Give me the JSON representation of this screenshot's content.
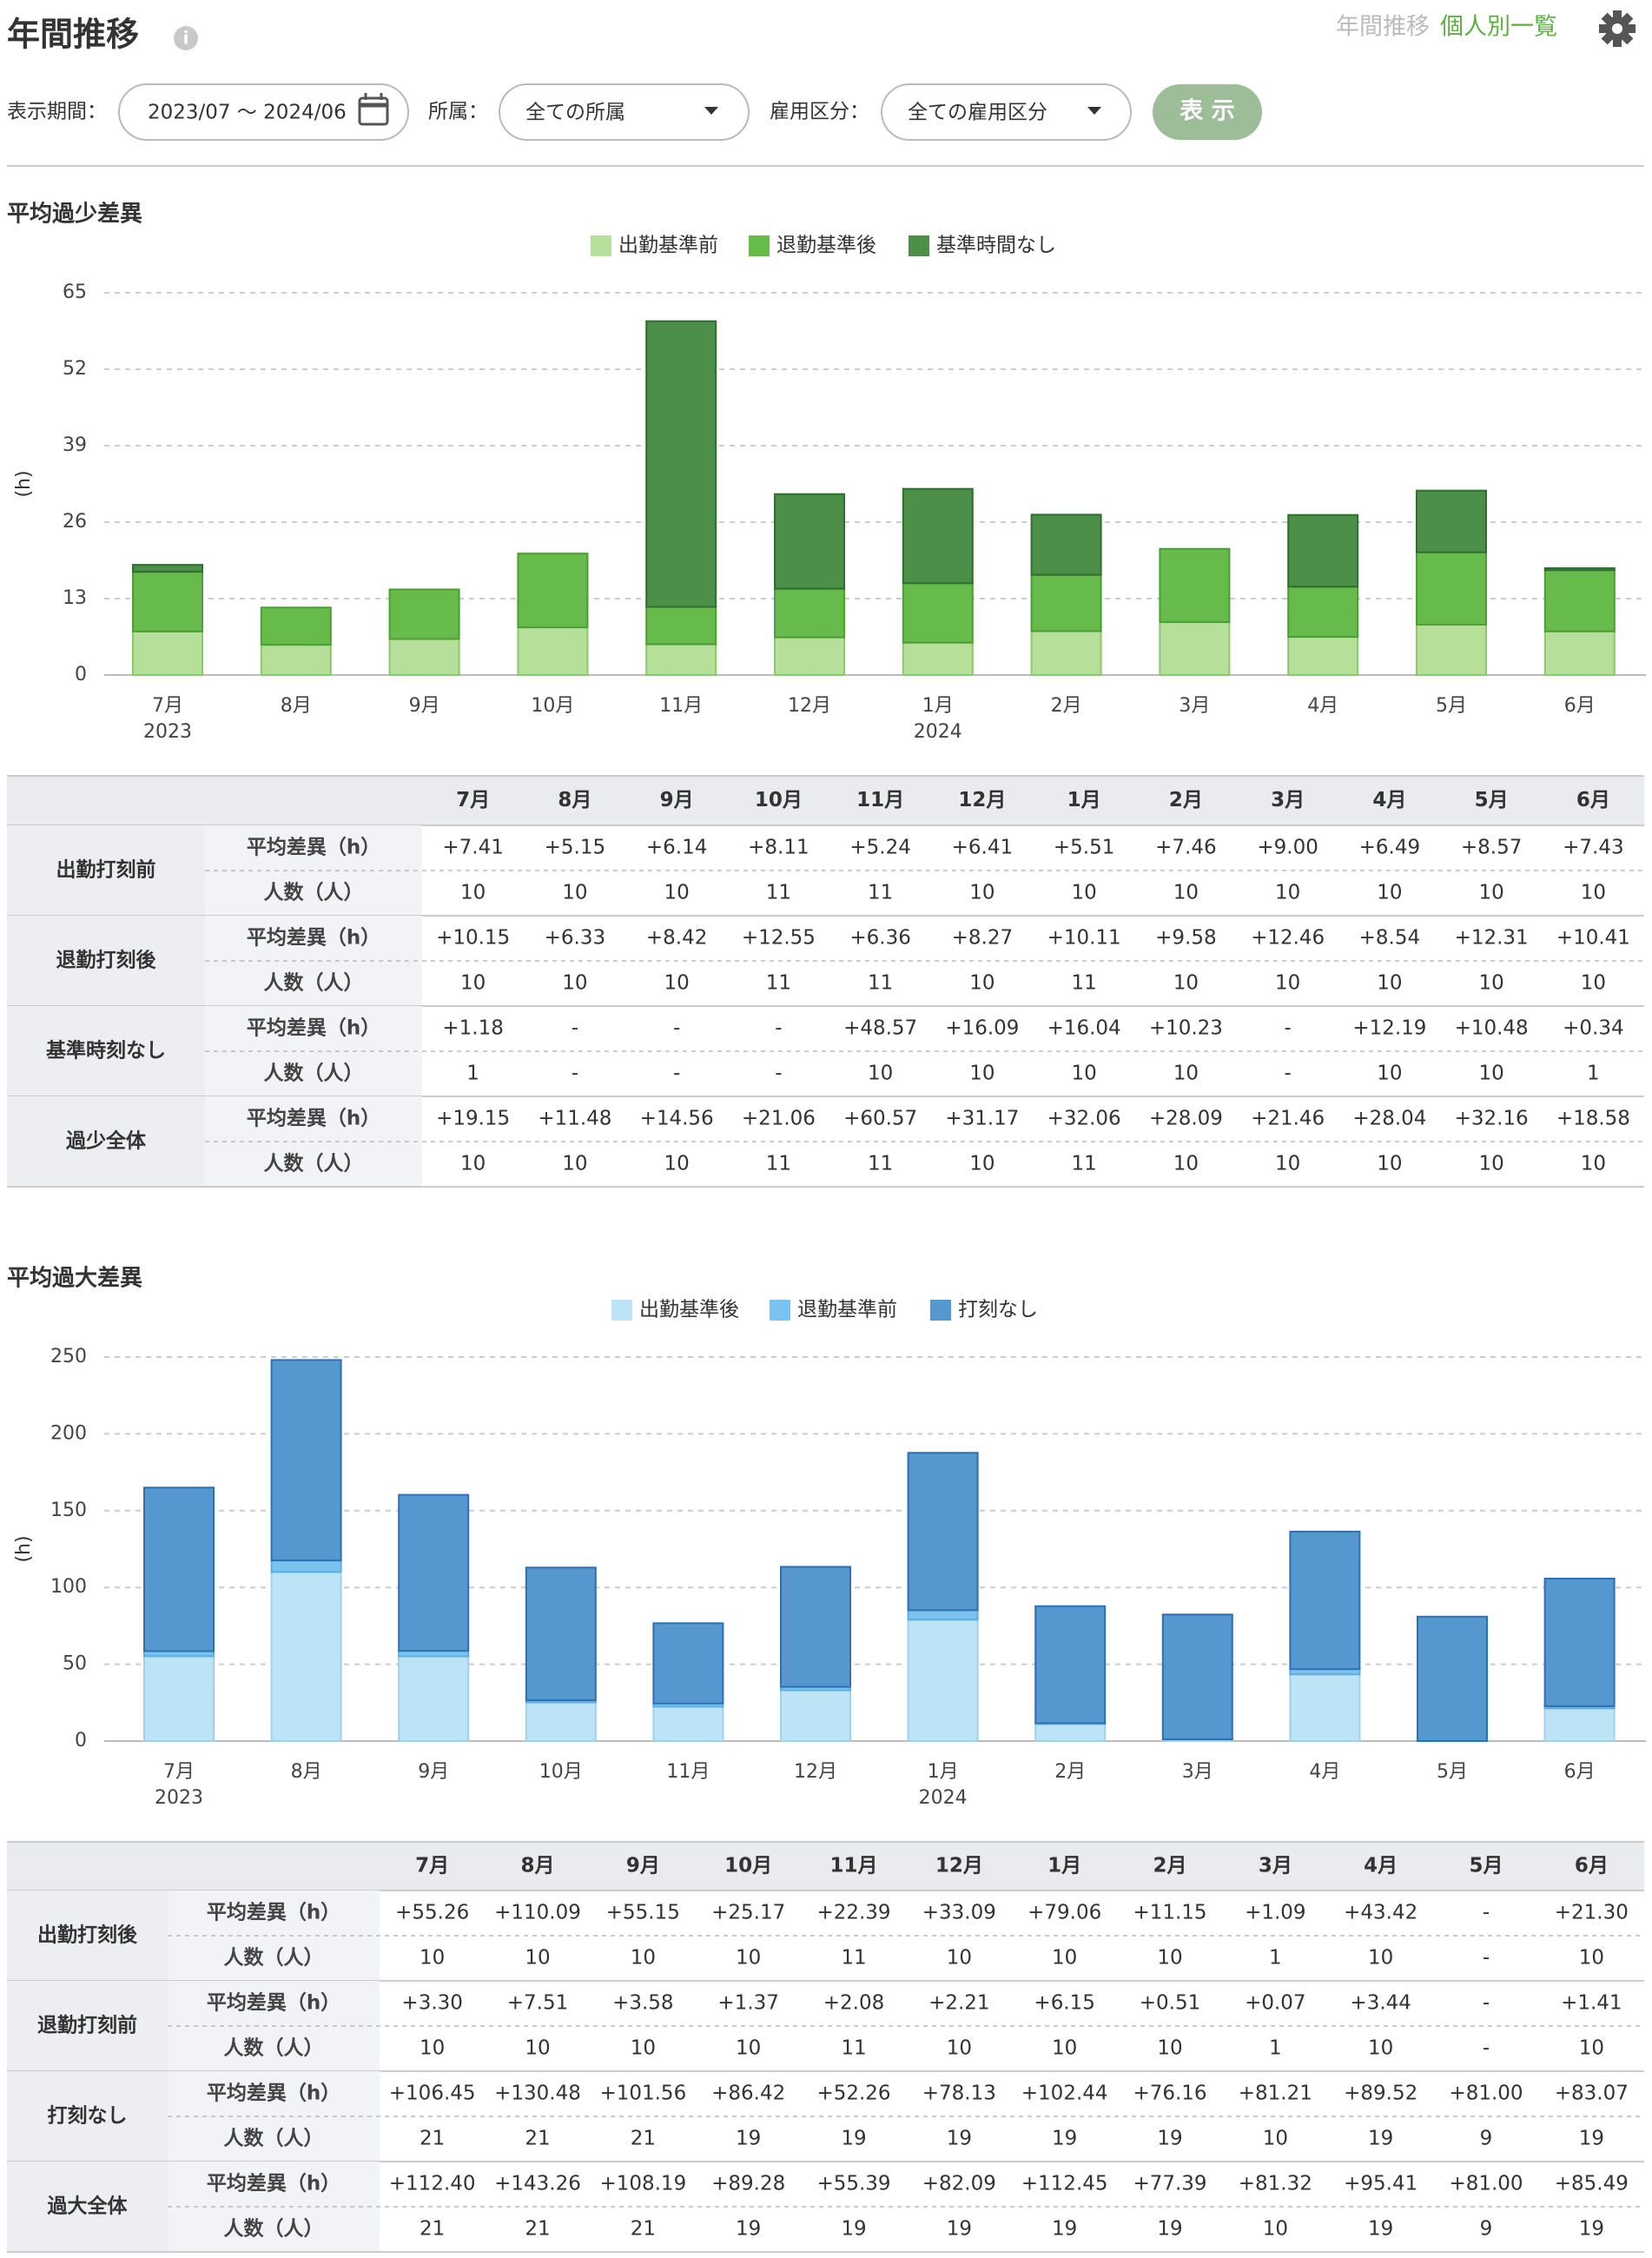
{
  "header": {
    "title": "年間推移",
    "nav": [
      "年間推移",
      "個人別一覧"
    ]
  },
  "filters": {
    "period_label": "表示期間：",
    "period_value": "2023/07 〜 2024/06",
    "dept_label": "所属：",
    "dept_value": "全ての所属",
    "emp_label": "雇用区分：",
    "emp_value": "全ての雇用区分",
    "button": "表 示"
  },
  "chart_data": [
    {
      "type": "bar",
      "stacked": true,
      "title": "平均過少差異",
      "y_label": "(h)",
      "grid": true,
      "legend": "top",
      "categories": [
        "7月",
        "8月",
        "9月",
        "10月",
        "11月",
        "12月",
        "1月",
        "2月",
        "3月",
        "4月",
        "5月",
        "6月"
      ],
      "year_labels": [
        "2023",
        null,
        null,
        null,
        null,
        null,
        "2024",
        null,
        null,
        null,
        null,
        null
      ],
      "ylim": [
        0,
        65
      ],
      "yticks": [
        0,
        13,
        26,
        39,
        52,
        65
      ],
      "series": [
        {
          "name": "出勤基準前",
          "color": "#b6df99",
          "border": "#8cc86c",
          "values": [
            7.41,
            5.15,
            6.14,
            8.11,
            5.24,
            6.41,
            5.51,
            7.46,
            9.0,
            6.49,
            8.57,
            7.43
          ]
        },
        {
          "name": "退勤基準後",
          "color": "#66bb4a",
          "border": "#4b9d35",
          "values": [
            10.15,
            6.33,
            8.42,
            12.55,
            6.36,
            8.27,
            10.11,
            9.58,
            12.46,
            8.54,
            12.31,
            10.41
          ]
        },
        {
          "name": "基準時間なし",
          "color": "#4b8f49",
          "border": "#2f6e2e",
          "values": [
            1.18,
            null,
            null,
            null,
            48.57,
            16.09,
            16.04,
            10.23,
            null,
            12.19,
            10.48,
            0.34
          ]
        }
      ]
    },
    {
      "type": "bar",
      "stacked": true,
      "title": "平均過大差異",
      "y_label": "(h)",
      "grid": true,
      "legend": "top",
      "categories": [
        "7月",
        "8月",
        "9月",
        "10月",
        "11月",
        "12月",
        "1月",
        "2月",
        "3月",
        "4月",
        "5月",
        "6月"
      ],
      "year_labels": [
        "2023",
        null,
        null,
        null,
        null,
        null,
        "2024",
        null,
        null,
        null,
        null,
        null
      ],
      "ylim": [
        0,
        250
      ],
      "yticks": [
        0,
        50,
        100,
        150,
        200,
        250
      ],
      "series": [
        {
          "name": "出勤基準後",
          "color": "#bde3f7",
          "border": "#9fd0ee",
          "values": [
            55.26,
            110.09,
            55.15,
            25.17,
            22.39,
            33.09,
            79.06,
            11.15,
            1.09,
            43.42,
            null,
            21.3
          ]
        },
        {
          "name": "退勤基準前",
          "color": "#79c3ee",
          "border": "#5aaee0",
          "values": [
            3.3,
            7.51,
            3.58,
            1.37,
            2.08,
            2.21,
            6.15,
            0.51,
            0.07,
            3.44,
            null,
            1.41
          ]
        },
        {
          "name": "打刻なし",
          "color": "#5597cf",
          "border": "#2f6fb3",
          "values": [
            106.45,
            130.48,
            101.56,
            86.42,
            52.26,
            78.13,
            102.44,
            76.16,
            81.21,
            89.52,
            81.0,
            83.07
          ]
        }
      ]
    }
  ],
  "tables": [
    {
      "months": [
        "7月",
        "8月",
        "9月",
        "10月",
        "11月",
        "12月",
        "1月",
        "2月",
        "3月",
        "4月",
        "5月",
        "6月"
      ],
      "groups": [
        {
          "label": "出勤打刻前",
          "rows": [
            {
              "label": "平均差異（h）",
              "cells": [
                "+7.41",
                "+5.15",
                "+6.14",
                "+8.11",
                "+5.24",
                "+6.41",
                "+5.51",
                "+7.46",
                "+9.00",
                "+6.49",
                "+8.57",
                "+7.43"
              ]
            },
            {
              "label": "人数（人）",
              "cells": [
                "10",
                "10",
                "10",
                "11",
                "11",
                "10",
                "10",
                "10",
                "10",
                "10",
                "10",
                "10"
              ]
            }
          ]
        },
        {
          "label": "退勤打刻後",
          "rows": [
            {
              "label": "平均差異（h）",
              "cells": [
                "+10.15",
                "+6.33",
                "+8.42",
                "+12.55",
                "+6.36",
                "+8.27",
                "+10.11",
                "+9.58",
                "+12.46",
                "+8.54",
                "+12.31",
                "+10.41"
              ]
            },
            {
              "label": "人数（人）",
              "cells": [
                "10",
                "10",
                "10",
                "11",
                "11",
                "10",
                "11",
                "10",
                "10",
                "10",
                "10",
                "10"
              ]
            }
          ]
        },
        {
          "label": "基準時刻なし",
          "rows": [
            {
              "label": "平均差異（h）",
              "cells": [
                "+1.18",
                "-",
                "-",
                "-",
                "+48.57",
                "+16.09",
                "+16.04",
                "+10.23",
                "-",
                "+12.19",
                "+10.48",
                "+0.34"
              ]
            },
            {
              "label": "人数（人）",
              "cells": [
                "1",
                "-",
                "-",
                "-",
                "10",
                "10",
                "10",
                "10",
                "-",
                "10",
                "10",
                "1"
              ]
            }
          ]
        },
        {
          "label": "過少全体",
          "rows": [
            {
              "label": "平均差異（h）",
              "cells": [
                "+19.15",
                "+11.48",
                "+14.56",
                "+21.06",
                "+60.57",
                "+31.17",
                "+32.06",
                "+28.09",
                "+21.46",
                "+28.04",
                "+32.16",
                "+18.58"
              ]
            },
            {
              "label": "人数（人）",
              "cells": [
                "10",
                "10",
                "10",
                "11",
                "11",
                "10",
                "11",
                "10",
                "10",
                "10",
                "10",
                "10"
              ]
            }
          ]
        }
      ]
    },
    {
      "months": [
        "7月",
        "8月",
        "9月",
        "10月",
        "11月",
        "12月",
        "1月",
        "2月",
        "3月",
        "4月",
        "5月",
        "6月"
      ],
      "groups": [
        {
          "label": "出勤打刻後",
          "rows": [
            {
              "label": "平均差異（h）",
              "cells": [
                "+55.26",
                "+110.09",
                "+55.15",
                "+25.17",
                "+22.39",
                "+33.09",
                "+79.06",
                "+11.15",
                "+1.09",
                "+43.42",
                "-",
                "+21.30"
              ]
            },
            {
              "label": "人数（人）",
              "cells": [
                "10",
                "10",
                "10",
                "10",
                "11",
                "10",
                "10",
                "10",
                "1",
                "10",
                "-",
                "10"
              ]
            }
          ]
        },
        {
          "label": "退勤打刻前",
          "rows": [
            {
              "label": "平均差異（h）",
              "cells": [
                "+3.30",
                "+7.51",
                "+3.58",
                "+1.37",
                "+2.08",
                "+2.21",
                "+6.15",
                "+0.51",
                "+0.07",
                "+3.44",
                "-",
                "+1.41"
              ]
            },
            {
              "label": "人数（人）",
              "cells": [
                "10",
                "10",
                "10",
                "10",
                "11",
                "10",
                "10",
                "10",
                "1",
                "10",
                "-",
                "10"
              ]
            }
          ]
        },
        {
          "label": "打刻なし",
          "rows": [
            {
              "label": "平均差異（h）",
              "cells": [
                "+106.45",
                "+130.48",
                "+101.56",
                "+86.42",
                "+52.26",
                "+78.13",
                "+102.44",
                "+76.16",
                "+81.21",
                "+89.52",
                "+81.00",
                "+83.07"
              ]
            },
            {
              "label": "人数（人）",
              "cells": [
                "21",
                "21",
                "21",
                "19",
                "19",
                "19",
                "19",
                "19",
                "10",
                "19",
                "9",
                "19"
              ]
            }
          ]
        },
        {
          "label": "過大全体",
          "rows": [
            {
              "label": "平均差異（h）",
              "cells": [
                "+112.40",
                "+143.26",
                "+108.19",
                "+89.28",
                "+55.39",
                "+82.09",
                "+112.45",
                "+77.39",
                "+81.32",
                "+95.41",
                "+81.00",
                "+85.49"
              ]
            },
            {
              "label": "人数（人）",
              "cells": [
                "21",
                "21",
                "21",
                "19",
                "19",
                "19",
                "19",
                "19",
                "10",
                "19",
                "9",
                "19"
              ]
            }
          ]
        }
      ]
    }
  ]
}
